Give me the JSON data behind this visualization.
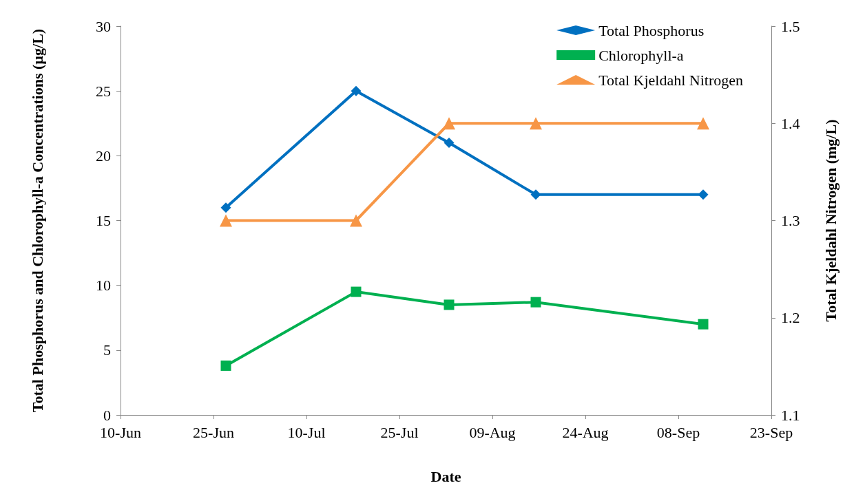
{
  "chart_data": {
    "type": "line",
    "xlabel": "Date",
    "ylabel": "Total Phosphorus and Chlorophyll-a Concentrations (µg/L)",
    "y2label": "Total Kjeldahl Nitrogen (mg/L)",
    "x": [
      "--06-27",
      "--07-18",
      "--08-02",
      "--08-16",
      "--09-12"
    ],
    "series": [
      {
        "name": "Total Phosphorus",
        "color": "#0070c0",
        "marker": "diamond",
        "values": [
          16,
          25,
          21,
          17,
          17
        ]
      },
      {
        "name": "Chlorophyll-a",
        "color": "#00b050",
        "marker": "square",
        "values": [
          3.8,
          9.5,
          8.5,
          8.7,
          7.0
        ]
      },
      {
        "name": "Total Kjeldahl Nitrogen",
        "color": "#f79646",
        "marker": "triangle",
        "axis": "y2",
        "values": [
          1.3,
          1.3,
          1.4,
          1.4,
          1.4
        ]
      }
    ],
    "xlim": [
      "--06-10",
      "--09-23"
    ],
    "xticks": [
      {
        "value": "--06-10",
        "label": "10-Jun"
      },
      {
        "value": "--06-25",
        "label": "25-Jun"
      },
      {
        "value": "--07-10",
        "label": "10-Jul"
      },
      {
        "value": "--07-25",
        "label": "25-Jul"
      },
      {
        "value": "--08-09",
        "label": "09-Aug"
      },
      {
        "value": "--08-24",
        "label": "24-Aug"
      },
      {
        "value": "--09-08",
        "label": "08-Sep"
      },
      {
        "value": "--09-23",
        "label": "23-Sep"
      }
    ],
    "ylim": [
      0,
      30
    ],
    "yticks": [
      0,
      5,
      10,
      15,
      20,
      25,
      30
    ],
    "y2lim": [
      1.1,
      1.5
    ],
    "y2ticks": [
      1.1,
      1.2,
      1.3,
      1.4,
      1.5
    ],
    "grid": false,
    "legend": "top right",
    "line_style": "solid"
  }
}
